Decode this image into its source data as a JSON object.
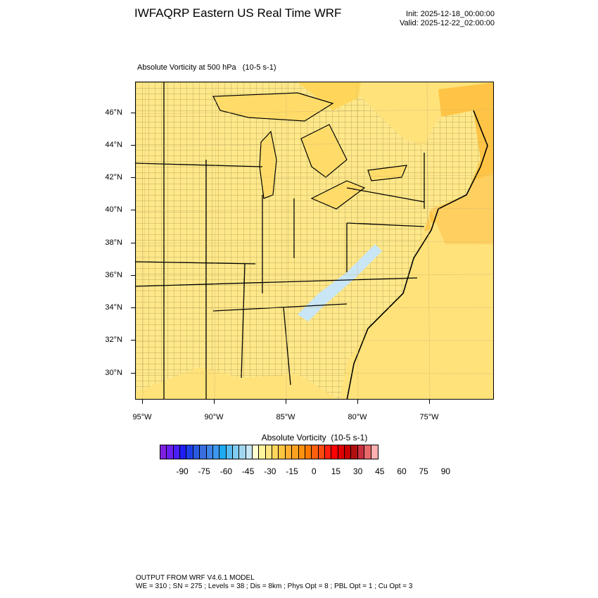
{
  "title": "IWFAQRP Eastern US Real Time WRF",
  "init": "Init: 2025-12-18_00:00:00",
  "valid": "Valid: 2025-12-22_02:00:00",
  "field_title": "Absolute Vorticity at 500 hPa   (10-5 s-1)",
  "lat_labels": [
    "46°N",
    "44°N",
    "42°N",
    "40°N",
    "38°N",
    "36°N",
    "34°N",
    "32°N",
    "30°N"
  ],
  "lon_labels": [
    "95°W",
    "90°W",
    "85°W",
    "80°W",
    "75°W"
  ],
  "colorbar": {
    "title": "Absolute Vorticity  (10-5 s-1)",
    "labels": [
      "-90",
      "-75",
      "-60",
      "-45",
      "-30",
      "-15",
      "0",
      "15",
      "30",
      "45",
      "60",
      "75",
      "90"
    ],
    "colors": [
      "#7f1fe0",
      "#6a1ff0",
      "#4a1ef5",
      "#1e1ef5",
      "#1e3fe8",
      "#2a5ae0",
      "#3a6ee0",
      "#3f84e8",
      "#3f98f0",
      "#1eaaf0",
      "#5abcf0",
      "#80cbf0",
      "#a2d6f0",
      "#c8e6f5",
      "#ffffd0",
      "#fff59a",
      "#ffe680",
      "#ffd65a",
      "#ffc640",
      "#ffb030",
      "#ffa020",
      "#ff9010",
      "#ff7a00",
      "#ff6010",
      "#ff4a10",
      "#ff2010",
      "#ff0000",
      "#e00000",
      "#c80000",
      "#b01010",
      "#c83040",
      "#e86a6a",
      "#ffb0b0"
    ]
  },
  "footer": {
    "line1": "OUTPUT FROM WRF V4.6.1 MODEL",
    "line2": "WE = 310 ; SN = 275 ; Levels = 38 ; Dis = 8km ; Phys Opt = 8 ; PBL Opt = 1 ; Cu Opt = 3"
  }
}
